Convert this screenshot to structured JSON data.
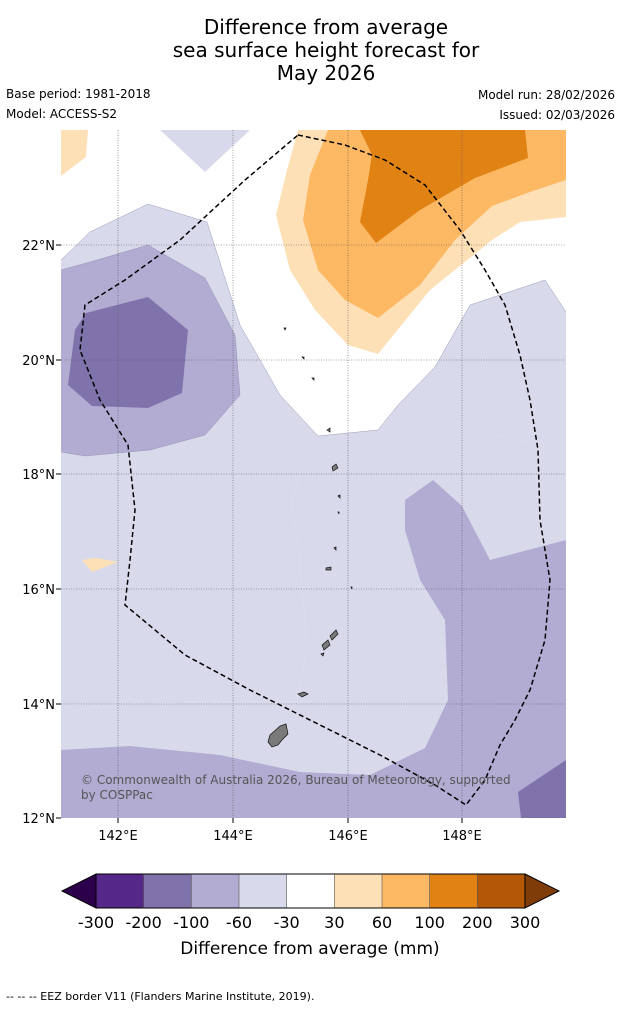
{
  "title": {
    "line1": "Difference from average",
    "line2": "sea surface height forecast for",
    "line3": "May 2026"
  },
  "info": {
    "base_period": "Base period: 1981-2018",
    "model": "Model: ACCESS-S2",
    "model_run": "Model run: 28/02/2026",
    "issued": "Issued: 02/03/2026"
  },
  "map": {
    "lon_ticks": [
      "142°E",
      "144°E",
      "146°E",
      "148°E"
    ],
    "lat_ticks": [
      "12°N",
      "14°N",
      "16°N",
      "18°N",
      "20°N",
      "22°N"
    ],
    "lon_range_deg": [
      141.0,
      149.8
    ],
    "lat_range_deg": [
      12.0,
      24.0
    ],
    "copyright_line1": "© Commonwealth of Australia 2026, Bureau of Meteorology, supported",
    "copyright_line2": "by COSPPac"
  },
  "colorbar": {
    "label": "Difference from average (mm)",
    "ticks": [
      "-300",
      "-200",
      "-100",
      "-60",
      "-30",
      "30",
      "60",
      "100",
      "200",
      "300"
    ],
    "colors": [
      "#542788",
      "#8073ac",
      "#b2abd2",
      "#d8daeb",
      "#ffffff",
      "#fee0b6",
      "#fdb863",
      "#e08214",
      "#b35806"
    ],
    "under_color": "#2d004b",
    "over_color": "#7f3b08"
  },
  "legend": {
    "eez_text": "--  --  -- EEZ border V11 (Flanders Marine Institute, 2019)."
  }
}
